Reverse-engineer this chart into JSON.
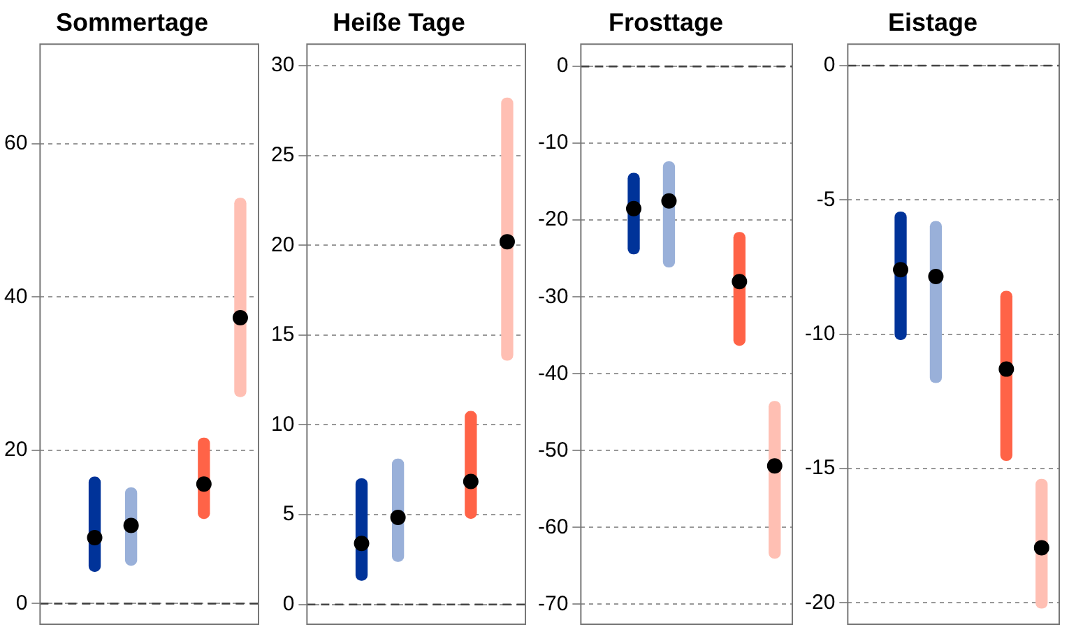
{
  "chart_data": [
    {
      "type": "bar",
      "title": "Sommertage",
      "categories": [
        null,
        null,
        null,
        null,
        null,
        null
      ],
      "ylim": [
        -2.7,
        73
      ],
      "yticks": [
        0,
        20,
        40,
        60
      ],
      "grid": "y",
      "tick_labels": "y",
      "ref_lines": [
        {
          "axis": "y",
          "value": 0,
          "line_style": "dashed",
          "color": "#444444"
        }
      ],
      "series": [
        {
          "base": [
            null,
            4.2,
            5.0,
            null,
            11.1,
            27.0
          ],
          "values": [
            null,
            12.3,
            10.1,
            null,
            10.5,
            25.9
          ],
          "colors": [
            "#003399",
            "#003399",
            "#99b0d9",
            "#ff6347",
            "#ff6347",
            "#ffbfb3"
          ]
        },
        {
          "type": "scatter",
          "marker": "circle",
          "color": "#000000",
          "values": [
            null,
            8.6,
            10.2,
            null,
            15.6,
            37.3
          ]
        }
      ]
    },
    {
      "type": "bar",
      "title": "Heiße Tage",
      "categories": [
        null,
        null,
        null,
        null,
        null,
        null
      ],
      "ylim": [
        -1.1,
        31.2
      ],
      "yticks": [
        0,
        5,
        10,
        15,
        20,
        25,
        30
      ],
      "grid": "y",
      "tick_labels": "y",
      "ref_lines": [
        {
          "axis": "y",
          "value": 0,
          "line_style": "dashed",
          "color": "#444444"
        }
      ],
      "series": [
        {
          "base": [
            null,
            1.35,
            2.4,
            null,
            4.8,
            13.6
          ],
          "values": [
            null,
            5.65,
            5.7,
            null,
            5.95,
            14.6
          ],
          "colors": [
            "#003399",
            "#003399",
            "#99b0d9",
            "#ff6347",
            "#ff6347",
            "#ffbfb3"
          ]
        },
        {
          "type": "scatter",
          "marker": "circle",
          "color": "#000000",
          "values": [
            null,
            3.4,
            4.85,
            null,
            6.85,
            20.2
          ]
        }
      ]
    },
    {
      "type": "bar",
      "title": "Frosttage",
      "categories": [
        null,
        null,
        null,
        null,
        null,
        null
      ],
      "ylim": [
        -72.6,
        2.9
      ],
      "yticks": [
        0,
        -10,
        -20,
        -30,
        -40,
        -50,
        -60,
        -70
      ],
      "grid": "y",
      "tick_labels": "y",
      "ref_lines": [
        {
          "axis": "y",
          "value": 0,
          "line_style": "dashed",
          "color": "#444444"
        }
      ],
      "series": [
        {
          "base": [
            null,
            -24.4,
            -26.1,
            null,
            -36.3,
            -64.0
          ],
          "values": [
            null,
            10.5,
            13.7,
            null,
            14.7,
            20.4
          ],
          "colors": [
            "#003399",
            "#003399",
            "#99b0d9",
            "#ff6347",
            "#ff6347",
            "#ffbfb3"
          ]
        },
        {
          "type": "scatter",
          "marker": "circle",
          "color": "#000000",
          "values": [
            null,
            -18.5,
            -17.5,
            null,
            -28,
            -52
          ]
        }
      ]
    },
    {
      "type": "bar",
      "title": "Eistage",
      "categories": [
        null,
        null,
        null,
        null,
        null,
        null
      ],
      "ylim": [
        -20.8,
        0.8
      ],
      "yticks": [
        0,
        -5,
        -10,
        -15,
        -20
      ],
      "grid": "y",
      "tick_labels": "y",
      "ref_lines": [
        {
          "axis": "y",
          "value": 0,
          "line_style": "dashed",
          "color": "#444444"
        }
      ],
      "series": [
        {
          "base": [
            null,
            -10.2,
            -11.8,
            null,
            -14.7,
            -20.2
          ],
          "values": [
            null,
            4.75,
            6.0,
            null,
            6.3,
            4.8
          ],
          "colors": [
            "#003399",
            "#003399",
            "#99b0d9",
            "#ff6347",
            "#ff6347",
            "#ffbfb3"
          ]
        },
        {
          "type": "scatter",
          "marker": "circle",
          "color": "#000000",
          "values": [
            null,
            -7.6,
            -7.85,
            null,
            -11.3,
            -17.95
          ]
        }
      ]
    }
  ]
}
